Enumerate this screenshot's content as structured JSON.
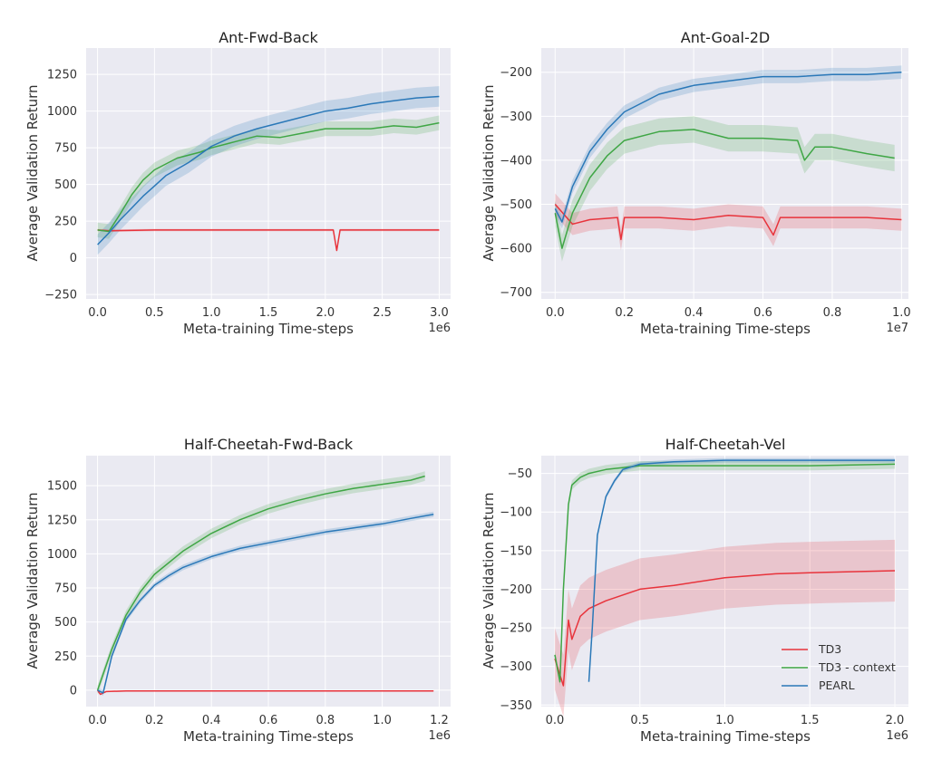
{
  "colors": {
    "TD3": "#e8333b",
    "TD3 - context": "#3fa645",
    "PEARL": "#2a78b8",
    "panel_bg": "#eaeaf2"
  },
  "legend": {
    "entries": [
      "TD3",
      "TD3 - context",
      "PEARL"
    ]
  },
  "chart_data": [
    {
      "type": "line",
      "title": "Ant-Fwd-Back",
      "xlabel": "Meta-training Time-steps",
      "ylabel": "Average Validation Return",
      "x_offset_label": "1e6",
      "xlim": [
        -0.1,
        3.1
      ],
      "ylim": [
        -280,
        1430
      ],
      "xticks": [
        0.0,
        0.5,
        1.0,
        1.5,
        2.0,
        2.5,
        3.0
      ],
      "xtick_labels": [
        "0.0",
        "0.5",
        "1.0",
        "1.5",
        "2.0",
        "2.5",
        "3.0"
      ],
      "yticks": [
        -250,
        0,
        250,
        500,
        750,
        1000,
        1250
      ],
      "ytick_labels": [
        "−250",
        "0",
        "250",
        "500",
        "750",
        "1000",
        "1250"
      ],
      "series": [
        {
          "name": "TD3",
          "x": [
            0.0,
            0.1,
            0.5,
            1.0,
            1.5,
            2.0,
            2.07,
            2.1,
            2.13,
            2.5,
            3.0
          ],
          "y": [
            190,
            185,
            190,
            190,
            190,
            190,
            190,
            50,
            190,
            190,
            190
          ],
          "band": 8
        },
        {
          "name": "TD3 - context",
          "x": [
            0.0,
            0.1,
            0.2,
            0.3,
            0.4,
            0.5,
            0.7,
            0.9,
            1.0,
            1.2,
            1.4,
            1.6,
            1.8,
            2.0,
            2.2,
            2.4,
            2.6,
            2.8,
            3.0
          ],
          "y": [
            190,
            180,
            300,
            430,
            530,
            600,
            680,
            720,
            750,
            790,
            830,
            820,
            850,
            880,
            880,
            880,
            900,
            890,
            920
          ],
          "band": 50
        },
        {
          "name": "PEARL",
          "x": [
            0.0,
            0.1,
            0.2,
            0.3,
            0.4,
            0.5,
            0.6,
            0.8,
            1.0,
            1.2,
            1.4,
            1.6,
            1.8,
            2.0,
            2.2,
            2.4,
            2.6,
            2.8,
            3.0
          ],
          "y": [
            90,
            170,
            260,
            340,
            420,
            490,
            560,
            650,
            760,
            830,
            880,
            920,
            960,
            1000,
            1020,
            1050,
            1070,
            1090,
            1100
          ],
          "band": 70
        }
      ]
    },
    {
      "type": "line",
      "title": "Ant-Goal-2D",
      "xlabel": "Meta-training Time-steps",
      "ylabel": "Average Validation Return",
      "x_offset_label": "1e7",
      "xlim": [
        -0.04,
        1.02
      ],
      "ylim": [
        -715,
        -145
      ],
      "xticks": [
        0.0,
        0.2,
        0.4,
        0.6,
        0.8,
        1.0
      ],
      "xtick_labels": [
        "0.0",
        "0.2",
        "0.4",
        "0.6",
        "0.8",
        "1.0"
      ],
      "yticks": [
        -700,
        -600,
        -500,
        -400,
        -300,
        -200
      ],
      "ytick_labels": [
        "−700",
        "−600",
        "−500",
        "−400",
        "−300",
        "−200"
      ],
      "series": [
        {
          "name": "TD3",
          "x": [
            0.0,
            0.05,
            0.1,
            0.18,
            0.19,
            0.2,
            0.3,
            0.4,
            0.5,
            0.6,
            0.63,
            0.65,
            0.7,
            0.8,
            0.9,
            1.0
          ],
          "y": [
            -500,
            -545,
            -535,
            -530,
            -580,
            -530,
            -530,
            -535,
            -525,
            -530,
            -570,
            -530,
            -530,
            -530,
            -530,
            -535
          ],
          "band": 25
        },
        {
          "name": "TD3 - context",
          "x": [
            0.0,
            0.02,
            0.05,
            0.1,
            0.15,
            0.2,
            0.3,
            0.4,
            0.5,
            0.6,
            0.7,
            0.72,
            0.75,
            0.8,
            0.9,
            0.98
          ],
          "y": [
            -520,
            -600,
            -520,
            -440,
            -390,
            -355,
            -335,
            -330,
            -350,
            -350,
            -355,
            -400,
            -370,
            -370,
            -385,
            -395
          ],
          "band": 30
        },
        {
          "name": "PEARL",
          "x": [
            0.0,
            0.02,
            0.05,
            0.1,
            0.15,
            0.2,
            0.3,
            0.4,
            0.5,
            0.6,
            0.7,
            0.8,
            0.9,
            1.0
          ],
          "y": [
            -510,
            -540,
            -460,
            -380,
            -330,
            -290,
            -250,
            -230,
            -220,
            -210,
            -210,
            -205,
            -205,
            -200
          ],
          "band": 15
        }
      ]
    },
    {
      "type": "line",
      "title": "Half-Cheetah-Fwd-Back",
      "xlabel": "Meta-training Time-steps",
      "ylabel": "Average Validation Return",
      "x_offset_label": "1e6",
      "xlim": [
        -0.04,
        1.24
      ],
      "ylim": [
        -120,
        1720
      ],
      "xticks": [
        0.0,
        0.2,
        0.4,
        0.6,
        0.8,
        1.0,
        1.2
      ],
      "xtick_labels": [
        "0.0",
        "0.2",
        "0.4",
        "0.6",
        "0.8",
        "1.0",
        "1.2"
      ],
      "yticks": [
        0,
        250,
        500,
        750,
        1000,
        1250,
        1500
      ],
      "ytick_labels": [
        "0",
        "250",
        "500",
        "750",
        "1000",
        "1250",
        "1500"
      ],
      "series": [
        {
          "name": "TD3",
          "x": [
            0.0,
            0.01,
            0.03,
            0.1,
            0.3,
            0.6,
            0.9,
            1.1,
            1.18
          ],
          "y": [
            0,
            -30,
            -10,
            -5,
            -5,
            -5,
            -5,
            -5,
            -5
          ],
          "band": 5
        },
        {
          "name": "TD3 - context",
          "x": [
            0.0,
            0.05,
            0.1,
            0.15,
            0.2,
            0.3,
            0.4,
            0.5,
            0.6,
            0.7,
            0.8,
            0.9,
            1.0,
            1.1,
            1.15
          ],
          "y": [
            0,
            300,
            550,
            720,
            850,
            1020,
            1150,
            1250,
            1330,
            1390,
            1440,
            1480,
            1510,
            1540,
            1570
          ],
          "band": 35
        },
        {
          "name": "PEARL",
          "x": [
            0.0,
            0.02,
            0.05,
            0.1,
            0.15,
            0.2,
            0.25,
            0.3,
            0.4,
            0.5,
            0.6,
            0.7,
            0.8,
            0.9,
            1.0,
            1.1,
            1.18
          ],
          "y": [
            0,
            -20,
            250,
            520,
            660,
            770,
            840,
            900,
            980,
            1040,
            1080,
            1120,
            1160,
            1190,
            1220,
            1260,
            1290
          ],
          "band": 20
        }
      ]
    },
    {
      "type": "line",
      "title": "Half-Cheetah-Vel",
      "xlabel": "Meta-training Time-steps",
      "ylabel": "Average Validation Return",
      "x_offset_label": "1e6",
      "xlim": [
        -0.08,
        2.08
      ],
      "ylim": [
        -352,
        -27
      ],
      "xticks": [
        0.0,
        0.5,
        1.0,
        1.5,
        2.0
      ],
      "xtick_labels": [
        "0.0",
        "0.5",
        "1.0",
        "1.5",
        "2.0"
      ],
      "yticks": [
        -350,
        -300,
        -250,
        -200,
        -150,
        -100,
        -50
      ],
      "ytick_labels": [
        "−350",
        "−300",
        "−250",
        "−200",
        "−150",
        "−100",
        "−50"
      ],
      "legend_position": "lower-right",
      "series": [
        {
          "name": "TD3",
          "x": [
            0.0,
            0.05,
            0.08,
            0.1,
            0.15,
            0.2,
            0.3,
            0.5,
            0.7,
            1.0,
            1.3,
            1.6,
            2.0
          ],
          "y": [
            -290,
            -325,
            -240,
            -265,
            -235,
            -225,
            -215,
            -200,
            -195,
            -185,
            -180,
            -178,
            -176
          ],
          "band": 40
        },
        {
          "name": "TD3 - context",
          "x": [
            0.0,
            0.03,
            0.05,
            0.08,
            0.1,
            0.15,
            0.2,
            0.3,
            0.5,
            0.7,
            1.0,
            1.5,
            2.0
          ],
          "y": [
            -285,
            -320,
            -200,
            -90,
            -65,
            -55,
            -50,
            -45,
            -40,
            -40,
            -40,
            -40,
            -38
          ],
          "band": 6
        },
        {
          "name": "PEARL",
          "x": [
            0.2,
            0.22,
            0.25,
            0.3,
            0.35,
            0.4,
            0.5,
            0.7,
            1.0,
            1.5,
            2.0
          ],
          "y": [
            -320,
            -250,
            -130,
            -80,
            -60,
            -45,
            -38,
            -35,
            -33,
            -33,
            -33
          ],
          "band": 3
        }
      ]
    }
  ]
}
